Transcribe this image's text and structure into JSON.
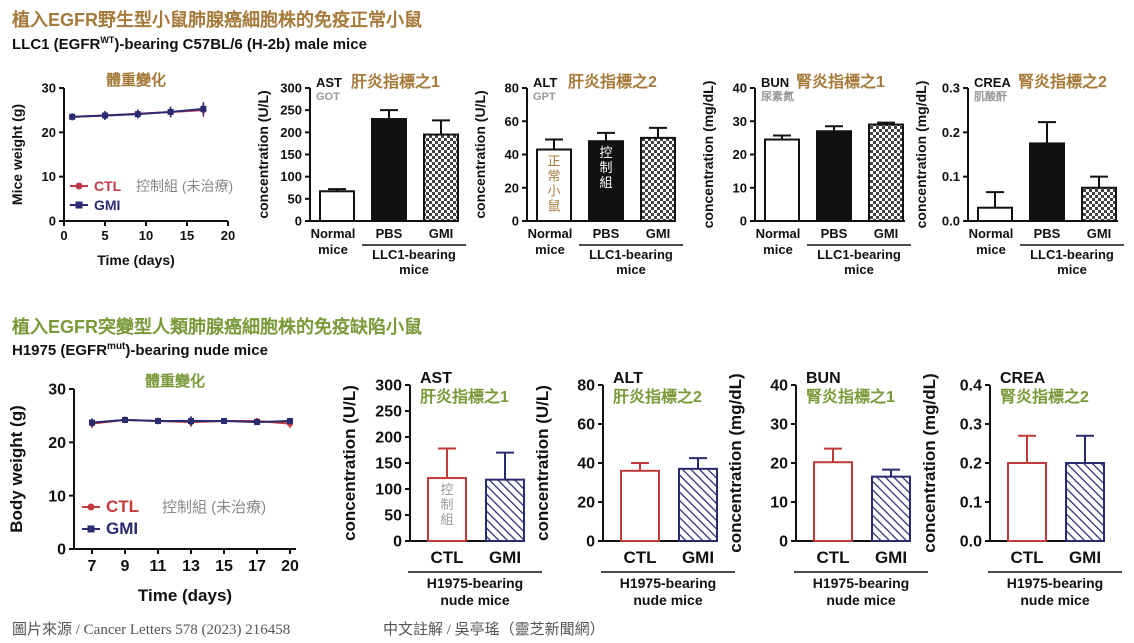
{
  "section1": {
    "title": "植入EGFR野生型小鼠肺腺癌細胞株的免疫正常小鼠",
    "subtitle_pre": "LLC1 (EGFR",
    "subtitle_sup": "WT",
    "subtitle_post": ")-bearing C57BL/6 (H-2b) male mice"
  },
  "section2": {
    "title": "植入EGFR突變型人類肺腺癌細胞株的免疫缺陷小鼠",
    "subtitle_pre": "H1975 (EGFR",
    "subtitle_sup": "mut",
    "subtitle_post": ")-bearing nude mice"
  },
  "footer": {
    "source": "圖片來源 / Cancer Letters 578 (2023) 216458",
    "note": "中文註解 / 吳亭瑤（靈芝新聞網）"
  },
  "colors": {
    "section_title": "#a57a3a",
    "section2_title": "#7a9a3a",
    "panel_title": "#a57a3a",
    "panel2_title": "#7a9a3a",
    "ctl1": "#c23a4a",
    "gmi1": "#2a2a70",
    "ctl2": "#c23a3a",
    "gmi2": "#2a2a70"
  },
  "chart_data": [
    {
      "id": "w1",
      "type": "line",
      "row": 1,
      "title": "體重變化",
      "xlabel": "Time (days)",
      "ylabel": "Mice weight (g)",
      "xlim": [
        0,
        20
      ],
      "ylim": [
        0,
        30
      ],
      "xticks": [
        0,
        5,
        10,
        15,
        20
      ],
      "yticks": [
        0,
        10,
        20,
        30
      ],
      "series": [
        {
          "name": "CTL",
          "x": [
            1,
            5,
            9,
            13,
            17
          ],
          "y": [
            23.5,
            23.8,
            24.2,
            24.6,
            25.0
          ],
          "err": [
            0.8,
            1.0,
            1.0,
            1.2,
            1.5
          ]
        },
        {
          "name": "GMI",
          "x": [
            1,
            5,
            9,
            13,
            17
          ],
          "y": [
            23.5,
            23.8,
            24.1,
            24.6,
            25.3
          ],
          "err": [
            0.8,
            1.0,
            1.0,
            1.2,
            1.5
          ]
        }
      ],
      "legend_note": "控制組 (未治療)"
    },
    {
      "id": "ast1",
      "type": "bar",
      "row": 1,
      "label": "AST",
      "sub": "GOT",
      "title": "肝炎指標之1",
      "ylabel": "concentration (U/L)",
      "ylim": [
        0,
        300
      ],
      "yticks": [
        0,
        50,
        100,
        150,
        200,
        250,
        300
      ],
      "categories": [
        "Normal mice",
        "PBS",
        "GMI"
      ],
      "values": [
        67,
        230,
        195
      ],
      "errors": [
        5,
        20,
        32
      ],
      "group": "LLC1-bearing mice"
    },
    {
      "id": "alt1",
      "type": "bar",
      "row": 1,
      "label": "ALT",
      "sub": "GPT",
      "title": "肝炎指標之2",
      "ylabel": "concentration (U/L)",
      "ylim": [
        0,
        80
      ],
      "yticks": [
        0,
        20,
        40,
        60,
        80
      ],
      "categories": [
        "Normal mice",
        "PBS",
        "GMI"
      ],
      "values": [
        43,
        48,
        50
      ],
      "errors": [
        6,
        5,
        6
      ],
      "group": "LLC1-bearing mice",
      "bar_notes": [
        "正常小鼠",
        "控制組"
      ]
    },
    {
      "id": "bun1",
      "type": "bar",
      "row": 1,
      "label": "BUN",
      "sub": "尿素氮",
      "title": "腎炎指標之1",
      "ylabel": "concentration (mg/dL)",
      "ylim": [
        0,
        40
      ],
      "yticks": [
        0,
        10,
        20,
        30,
        40
      ],
      "categories": [
        "Normal mice",
        "PBS",
        "GMI"
      ],
      "values": [
        24.5,
        27,
        29
      ],
      "errors": [
        1.2,
        1.5,
        0.6
      ],
      "group": "LLC1-bearing mice"
    },
    {
      "id": "crea1",
      "type": "bar",
      "row": 1,
      "label": "CREA",
      "sub": "肌酸酐",
      "title": "腎炎指標之2",
      "ylabel": "concentration (mg/dL)",
      "ylim": [
        0,
        0.3
      ],
      "yticks": [
        0.0,
        0.1,
        0.2,
        0.3
      ],
      "categories": [
        "Normal mice",
        "PBS",
        "GMI"
      ],
      "values": [
        0.03,
        0.175,
        0.075
      ],
      "errors": [
        0.035,
        0.048,
        0.025
      ],
      "group": "LLC1-bearing mice"
    },
    {
      "id": "w2",
      "type": "line",
      "row": 2,
      "title": "體重變化",
      "xlabel": "Time (days)",
      "ylabel": "Body weight (g)",
      "ylim": [
        0,
        30
      ],
      "yticks": [
        0,
        10,
        20,
        30
      ],
      "xticks": [
        7,
        9,
        11,
        13,
        15,
        17,
        20
      ],
      "series": [
        {
          "name": "CTL",
          "y": [
            23.5,
            24.2,
            24.0,
            23.8,
            24.0,
            24.0,
            23.5
          ],
          "err": [
            0.8,
            0.6,
            0.6,
            0.9,
            0.5,
            0.5,
            0.8
          ]
        },
        {
          "name": "GMI",
          "y": [
            23.7,
            24.2,
            24.0,
            24.0,
            24.0,
            23.8,
            24.0
          ],
          "err": [
            0.8,
            0.6,
            0.6,
            0.9,
            0.5,
            0.5,
            0.6
          ]
        }
      ],
      "legend_note": "控制組 (未治療)"
    },
    {
      "id": "ast2",
      "type": "bar",
      "row": 2,
      "label": "AST",
      "title": "肝炎指標之1",
      "ylabel": "concentration (U/L)",
      "ylim": [
        0,
        300
      ],
      "yticks": [
        0,
        50,
        100,
        150,
        200,
        250,
        300
      ],
      "categories": [
        "CTL",
        "GMI"
      ],
      "values": [
        121,
        118
      ],
      "errors": [
        57,
        52
      ],
      "group": "H1975-bearing nude mice",
      "bar_notes": [
        "控制組"
      ]
    },
    {
      "id": "alt2",
      "type": "bar",
      "row": 2,
      "label": "ALT",
      "title": "肝炎指標之2",
      "ylabel": "concentration (U/L)",
      "ylim": [
        0,
        80
      ],
      "yticks": [
        0,
        20,
        40,
        60,
        80
      ],
      "categories": [
        "CTL",
        "GMI"
      ],
      "values": [
        36,
        37
      ],
      "errors": [
        4,
        5.5
      ],
      "group": "H1975-bearing nude mice"
    },
    {
      "id": "bun2",
      "type": "bar",
      "row": 2,
      "label": "BUN",
      "title": "腎炎指標之1",
      "ylabel": "concentration (mg/dL)",
      "ylim": [
        0,
        40
      ],
      "yticks": [
        0,
        10,
        20,
        30,
        40
      ],
      "categories": [
        "CTL",
        "GMI"
      ],
      "values": [
        20.2,
        16.5
      ],
      "errors": [
        3.5,
        1.8
      ],
      "group": "H1975-bearing nude mice"
    },
    {
      "id": "crea2",
      "type": "bar",
      "row": 2,
      "label": "CREA",
      "title": "腎炎指標之2",
      "ylabel": "concentration (mg/dL)",
      "ylim": [
        0,
        0.4
      ],
      "yticks": [
        0.0,
        0.1,
        0.2,
        0.3,
        0.4
      ],
      "categories": [
        "CTL",
        "GMI"
      ],
      "values": [
        0.2,
        0.2
      ],
      "errors": [
        0.07,
        0.07
      ],
      "group": "H1975-bearing nude mice"
    }
  ]
}
